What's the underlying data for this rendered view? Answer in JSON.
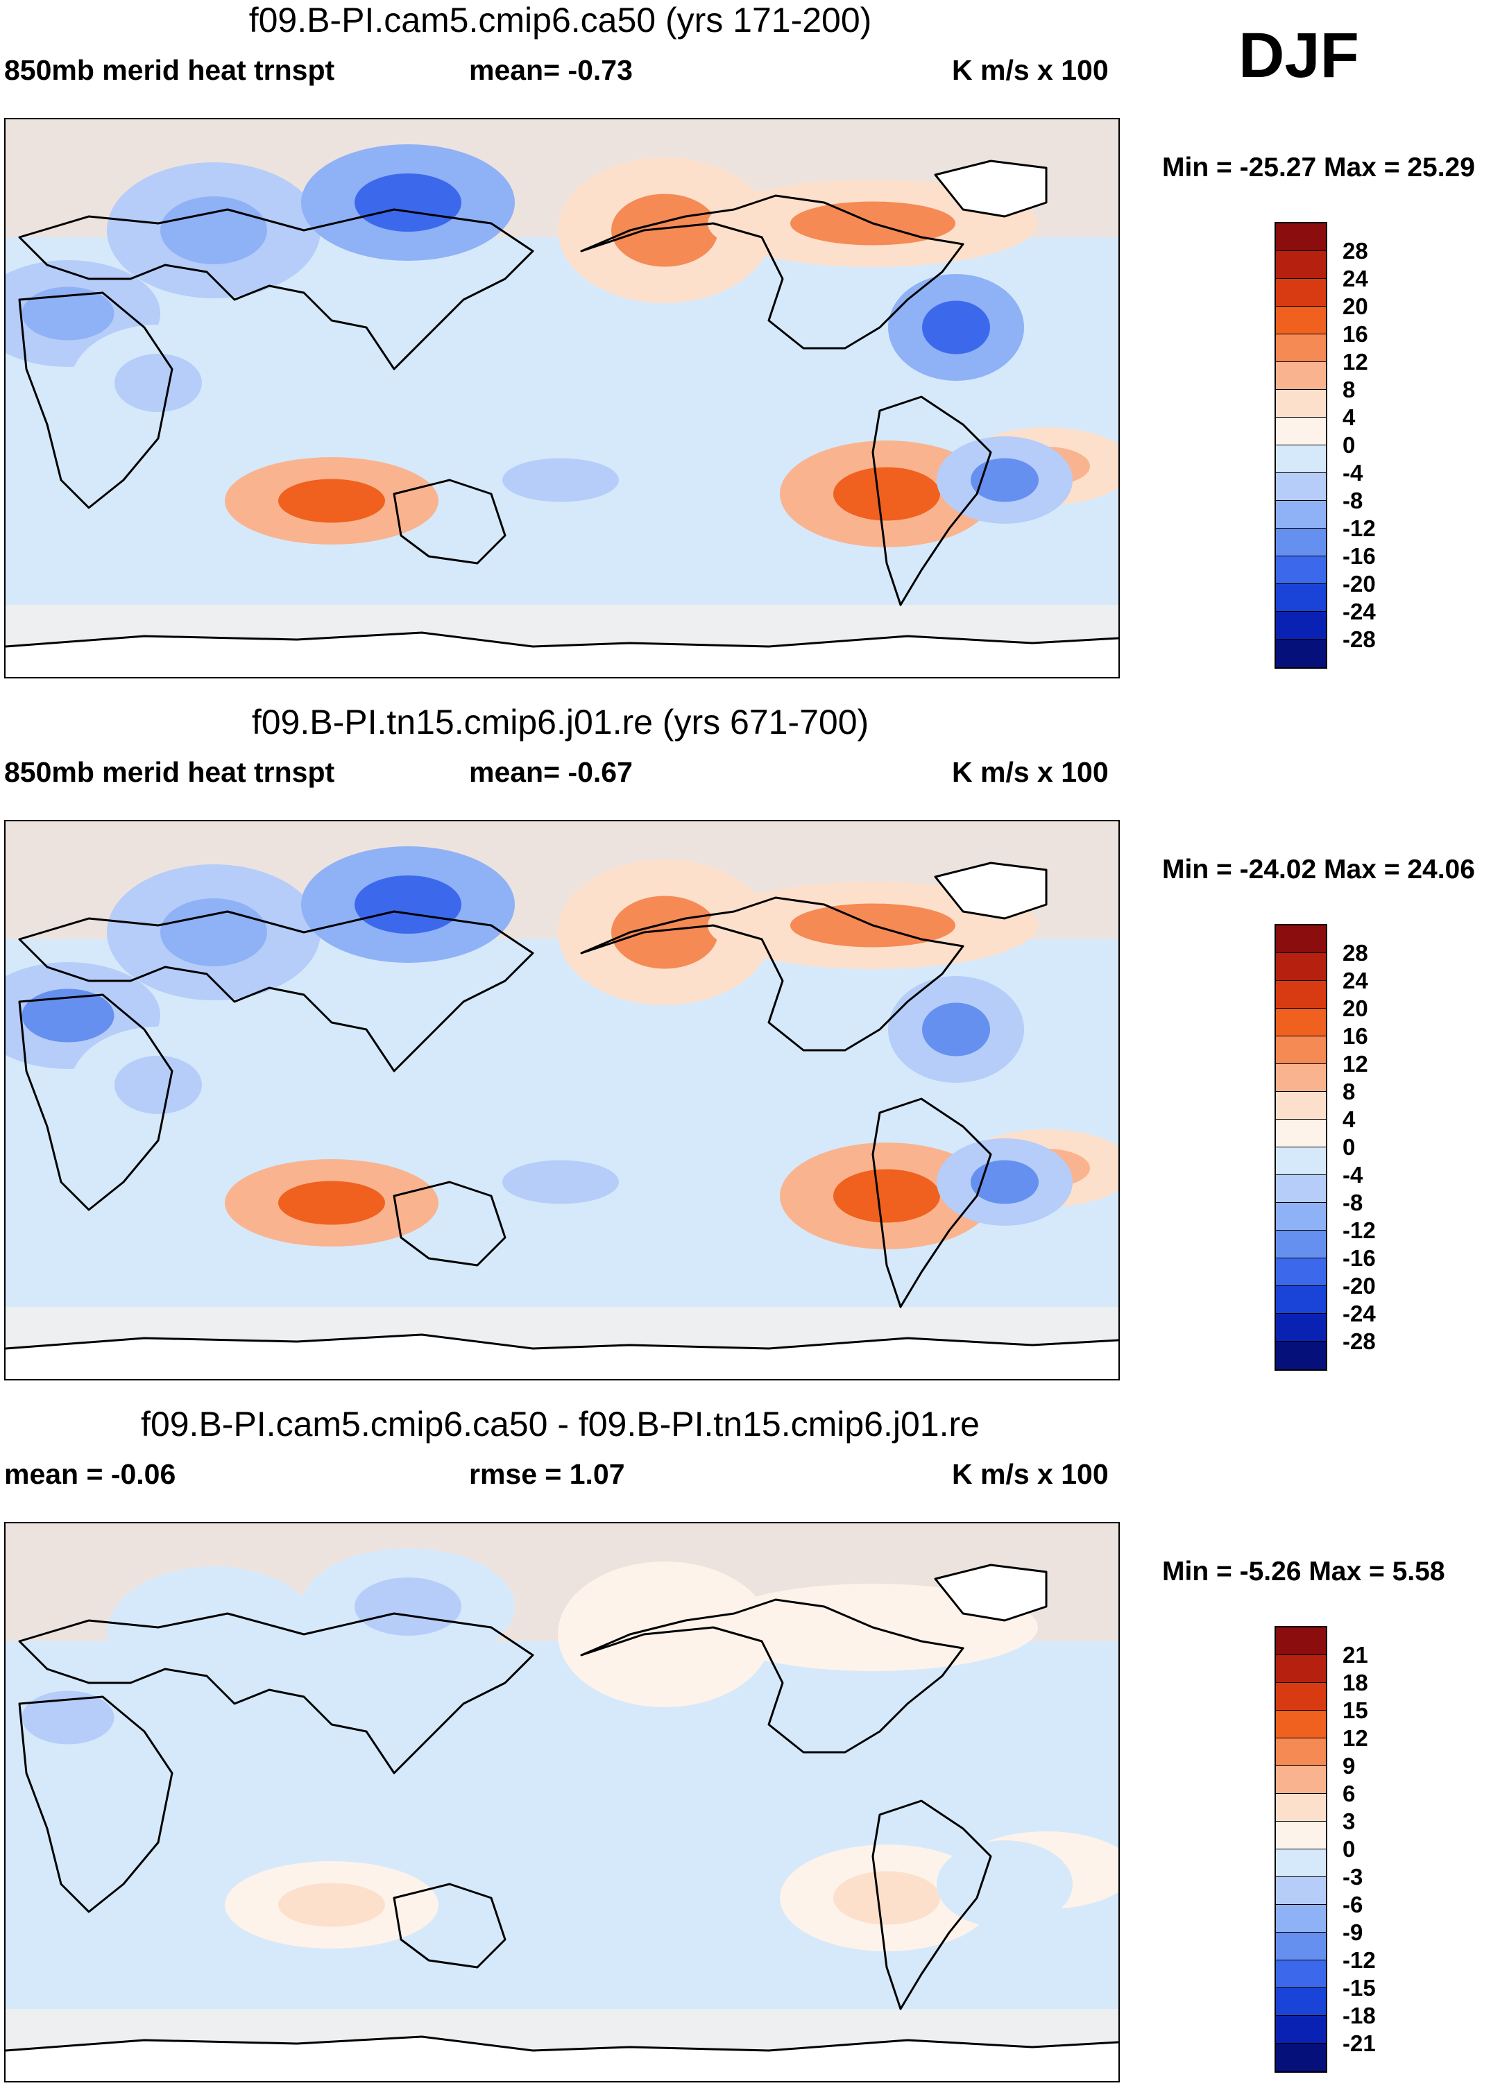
{
  "season": "DJF",
  "units": "K m/s x 100",
  "panels": [
    {
      "title": "f09.B-PI.cam5.cmip6.ca50 (yrs 171-200)",
      "sub_left": "850mb merid heat trnspt",
      "sub_mid": "mean=  -0.73",
      "sub_right": "K m/s x 100",
      "minmax": "Min = -25.27 Max =  25.29",
      "colorbar": {
        "labels": [
          "28",
          "24",
          "20",
          "16",
          "12",
          "8",
          "4",
          "0",
          "-4",
          "-8",
          "-12",
          "-16",
          "-20",
          "-24",
          "-28"
        ],
        "colors": [
          "#8b0d0d",
          "#b5200f",
          "#d83a12",
          "#f0601e",
          "#f58a55",
          "#f9b48f",
          "#fce0cc",
          "#fdf3ea",
          "#d6e9fb",
          "#b5cdf8",
          "#8fb1f6",
          "#6690f0",
          "#3c69ec",
          "#1a44d8",
          "#0a22b3",
          "#06107a"
        ]
      },
      "fields": [
        {
          "label": "c1",
          "value": -12
        },
        {
          "label": "c2",
          "value": -12
        },
        {
          "label": "c3",
          "value": 18
        },
        {
          "label": "c4",
          "value": -20
        },
        {
          "label": "c5",
          "value": 14
        },
        {
          "label": "c6",
          "value": 14
        },
        {
          "label": "c7",
          "value": 16
        },
        {
          "label": "c8",
          "value": 10
        },
        {
          "label": "c9",
          "value": -18
        },
        {
          "label": "c10",
          "value": -14
        },
        {
          "label": "c11",
          "value": -8
        },
        {
          "label": "c12",
          "value": -8
        }
      ]
    },
    {
      "title": "f09.B-PI.tn15.cmip6.j01.re (yrs 671-700)",
      "sub_left": "850mb merid heat trnspt",
      "sub_mid": "mean=  -0.67",
      "sub_right": "K m/s x 100",
      "minmax": "Min = -24.02 Max =  24.06",
      "colorbar": {
        "labels": [
          "28",
          "24",
          "20",
          "16",
          "12",
          "8",
          "4",
          "0",
          "-4",
          "-8",
          "-12",
          "-16",
          "-20",
          "-24",
          "-28"
        ],
        "colors": [
          "#8b0d0d",
          "#b5200f",
          "#d83a12",
          "#f0601e",
          "#f58a55",
          "#f9b48f",
          "#fce0cc",
          "#fdf3ea",
          "#d6e9fb",
          "#b5cdf8",
          "#8fb1f6",
          "#6690f0",
          "#3c69ec",
          "#1a44d8",
          "#0a22b3",
          "#06107a"
        ]
      },
      "fields": [
        {
          "label": "c1",
          "value": -14
        },
        {
          "label": "c2",
          "value": -12
        },
        {
          "label": "c3",
          "value": 16
        },
        {
          "label": "c4",
          "value": -18
        },
        {
          "label": "c5",
          "value": 12
        },
        {
          "label": "c6",
          "value": 12
        },
        {
          "label": "c7",
          "value": 16
        },
        {
          "label": "c8",
          "value": 10
        },
        {
          "label": "c9",
          "value": -16
        },
        {
          "label": "c10",
          "value": -14
        },
        {
          "label": "c11",
          "value": -8
        },
        {
          "label": "c12",
          "value": -8
        }
      ]
    },
    {
      "title": "f09.B-PI.cam5.cmip6.ca50 - f09.B-PI.tn15.cmip6.j01.re",
      "sub_left": "mean =  -0.06",
      "sub_mid": "rmse =   1.07",
      "sub_right": "K m/s x 100",
      "minmax": "Min =  -5.26 Max =   5.58",
      "colorbar": {
        "labels": [
          "21",
          "18",
          "15",
          "12",
          "9",
          "6",
          "3",
          "0",
          "-3",
          "-6",
          "-9",
          "-12",
          "-15",
          "-18",
          "-21"
        ],
        "colors": [
          "#8b0d0d",
          "#b5200f",
          "#d83a12",
          "#f0601e",
          "#f58a55",
          "#f9b48f",
          "#fce0cc",
          "#fdf3ea",
          "#d6e9fb",
          "#b5cdf8",
          "#8fb1f6",
          "#6690f0",
          "#3c69ec",
          "#1a44d8",
          "#0a22b3",
          "#06107a"
        ]
      },
      "fields": [
        {
          "label": "c1",
          "value": -4
        },
        {
          "label": "c2",
          "value": -3
        },
        {
          "label": "c3",
          "value": 3
        },
        {
          "label": "c4",
          "value": -4
        },
        {
          "label": "c5",
          "value": 2
        },
        {
          "label": "c6",
          "value": 2
        },
        {
          "label": "c7",
          "value": 3
        },
        {
          "label": "c8",
          "value": 2
        },
        {
          "label": "c9",
          "value": -3
        },
        {
          "label": "c10",
          "value": -3
        },
        {
          "label": "c11",
          "value": -2
        },
        {
          "label": "c12",
          "value": -2
        }
      ]
    }
  ]
}
